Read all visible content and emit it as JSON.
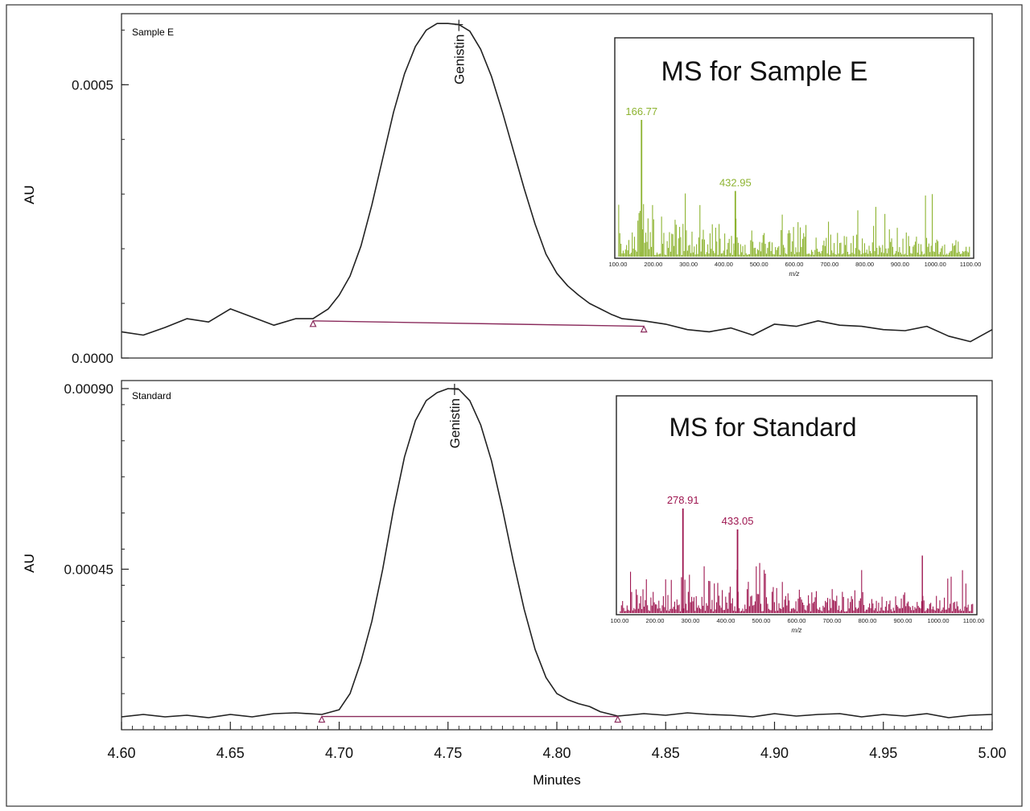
{
  "chart_data": [
    {
      "type": "line",
      "panel_label": "Sample E",
      "ylabel": "AU",
      "ylim": [
        0.0,
        0.00063
      ],
      "yticks": [
        0.0,
        0.0005
      ],
      "ytick_labels": [
        "0.0000",
        "0.0005"
      ],
      "xlim": [
        4.6,
        5.0
      ],
      "peak": {
        "label": "Genistin",
        "x": 4.755,
        "y": 0.00061
      },
      "baseline": {
        "start": [
          4.688,
          6.8e-05
        ],
        "end": [
          4.84,
          5.8e-05
        ]
      },
      "series": [
        {
          "x": [
            4.6,
            4.61,
            4.62,
            4.63,
            4.64,
            4.65,
            4.66,
            4.67,
            4.68,
            4.688,
            4.695,
            4.7,
            4.705,
            4.71,
            4.715,
            4.72,
            4.725,
            4.73,
            4.735,
            4.74,
            4.745,
            4.75,
            4.755,
            4.76,
            4.765,
            4.77,
            4.775,
            4.78,
            4.785,
            4.79,
            4.795,
            4.8,
            4.805,
            4.81,
            4.815,
            4.82,
            4.825,
            4.83,
            4.84,
            4.85,
            4.86,
            4.87,
            4.88,
            4.89,
            4.9,
            4.91,
            4.92,
            4.93,
            4.94,
            4.95,
            4.96,
            4.97,
            4.98,
            4.99,
            5.0
          ],
          "y": [
            4.8e-05,
            4.2e-05,
            5.6e-05,
            7.2e-05,
            6.6e-05,
            9e-05,
            7.5e-05,
            6e-05,
            7.2e-05,
            7.2e-05,
            9e-05,
            0.000115,
            0.00015,
            0.000205,
            0.00028,
            0.000365,
            0.00045,
            0.00052,
            0.00057,
            0.0006,
            0.000612,
            0.000612,
            0.00061,
            0.000598,
            0.000565,
            0.000515,
            0.00045,
            0.00038,
            0.00031,
            0.000245,
            0.00019,
            0.000155,
            0.000132,
            0.000115,
            0.0001,
            9e-05,
            8e-05,
            7.2e-05,
            6.8e-05,
            6.2e-05,
            5.2e-05,
            4.8e-05,
            5.5e-05,
            4.2e-05,
            6.2e-05,
            5.8e-05,
            6.8e-05,
            6e-05,
            5.8e-05,
            5.2e-05,
            5e-05,
            5.8e-05,
            4e-05,
            3e-05,
            5.2e-05
          ]
        }
      ],
      "inset": {
        "title": "MS for Sample E",
        "color": "#8db330",
        "xlabel": "m/z",
        "xlim": [
          100,
          1100
        ],
        "xtick_labels": [
          "100.00",
          "200.00",
          "300.00",
          "400.00",
          "500.00",
          "600.00",
          "700.00",
          "800.00",
          "900.00",
          "1000.00",
          "1100.00"
        ],
        "peaks": [
          {
            "label": "166.77",
            "mz": 166.77,
            "intensity": 1.0
          },
          {
            "label": "432.95",
            "mz": 432.95,
            "intensity": 0.48
          }
        ]
      }
    },
    {
      "type": "line",
      "panel_label": "Standard",
      "ylabel": "AU",
      "ylim": [
        5e-05,
        0.00092
      ],
      "yticks": [
        0.00045,
        0.0009
      ],
      "ytick_labels": [
        "0.00045",
        "0.00090"
      ],
      "xlim": [
        4.6,
        5.0
      ],
      "xlabel": "Minutes",
      "xtick_labels": [
        "4.60",
        "4.65",
        "4.70",
        "4.75",
        "4.80",
        "4.85",
        "4.90",
        "4.95",
        "5.00"
      ],
      "peak": {
        "label": "Genistin",
        "x": 4.753,
        "y": 0.0009
      },
      "baseline": {
        "start": [
          4.692,
          8.3e-05
        ],
        "end": [
          4.828,
          8.3e-05
        ]
      },
      "series": [
        {
          "x": [
            4.6,
            4.61,
            4.62,
            4.63,
            4.64,
            4.65,
            4.66,
            4.67,
            4.68,
            4.692,
            4.7,
            4.705,
            4.71,
            4.715,
            4.72,
            4.725,
            4.73,
            4.735,
            4.74,
            4.745,
            4.75,
            4.755,
            4.76,
            4.765,
            4.77,
            4.775,
            4.78,
            4.785,
            4.79,
            4.795,
            4.8,
            4.805,
            4.81,
            4.815,
            4.82,
            4.828,
            4.84,
            4.85,
            4.86,
            4.87,
            4.88,
            4.89,
            4.9,
            4.91,
            4.92,
            4.93,
            4.94,
            4.95,
            4.96,
            4.97,
            4.98,
            4.99,
            5.0
          ],
          "y": [
            8.2e-05,
            8.8e-05,
            8.2e-05,
            8.6e-05,
            8e-05,
            8.8e-05,
            8.2e-05,
            9e-05,
            9.2e-05,
            8.8e-05,
            0.0001,
            0.00014,
            0.00022,
            0.00032,
            0.00045,
            0.0006,
            0.00073,
            0.00082,
            0.00087,
            0.00089,
            0.0009,
            0.000898,
            0.00087,
            0.00081,
            0.00072,
            0.0006,
            0.00047,
            0.00035,
            0.00025,
            0.00018,
            0.00014,
            0.000125,
            0.000115,
            0.000108,
            9.5e-05,
            8.4e-05,
            9e-05,
            8.6e-05,
            9.2e-05,
            8.8e-05,
            8.6e-05,
            8.2e-05,
            9e-05,
            8.4e-05,
            8.8e-05,
            9e-05,
            8.2e-05,
            8.8e-05,
            8.4e-05,
            9e-05,
            8e-05,
            8.6e-05,
            8.8e-05
          ]
        }
      ],
      "inset": {
        "title": "MS for Standard",
        "color": "#9e1650",
        "xlabel": "m/z",
        "xlim": [
          100,
          1100
        ],
        "xtick_labels": [
          "100.00",
          "200.00",
          "300.00",
          "400.00",
          "500.00",
          "600.00",
          "700.00",
          "800.00",
          "900.00",
          "1000.00",
          "1100.00"
        ],
        "peaks": [
          {
            "label": "278.91",
            "mz": 278.91,
            "intensity": 1.0
          },
          {
            "label": "433.05",
            "mz": 433.05,
            "intensity": 0.8
          }
        ]
      }
    }
  ],
  "colors": {
    "trace": "#222222",
    "baseline": "#8a2b5c",
    "frame": "#222222"
  }
}
